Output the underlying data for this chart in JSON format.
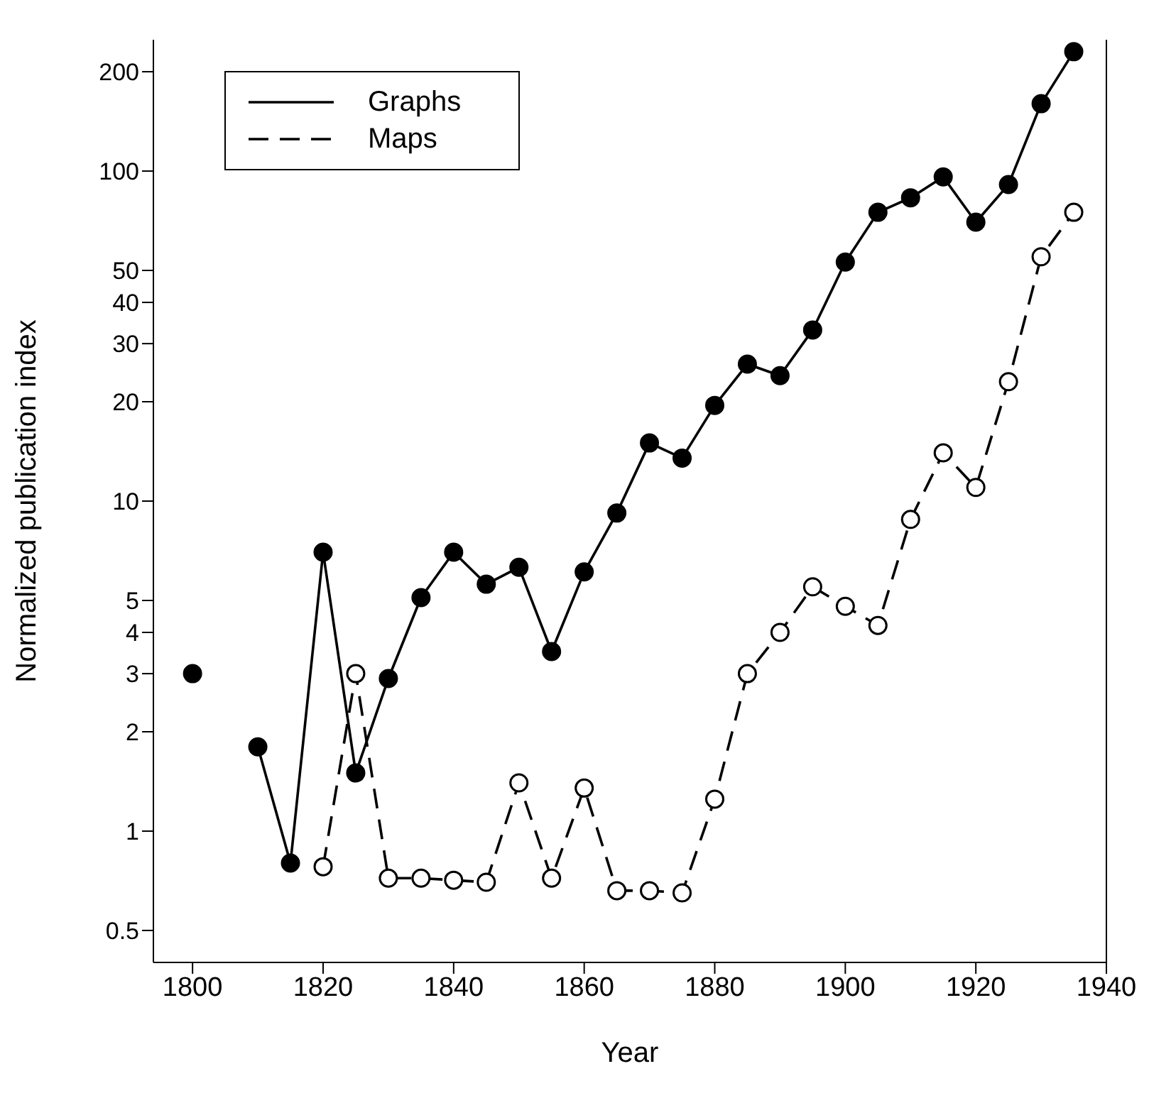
{
  "chart_data": {
    "type": "line",
    "xlabel": "Year",
    "ylabel": "Normalized publication index",
    "x": [
      1800,
      1805,
      1810,
      1815,
      1820,
      1825,
      1830,
      1835,
      1840,
      1845,
      1850,
      1855,
      1860,
      1865,
      1870,
      1875,
      1880,
      1885,
      1890,
      1895,
      1900,
      1905,
      1910,
      1915,
      1920,
      1925,
      1930,
      1935
    ],
    "series": [
      {
        "name": "Graphs",
        "color": "#000000",
        "line_style": "solid",
        "values": [
          3,
          null,
          1.8,
          0.8,
          7,
          1.5,
          2.9,
          5.1,
          7,
          5.6,
          6.3,
          3.5,
          6.1,
          9.2,
          15,
          13.5,
          19.5,
          26,
          24,
          33,
          53,
          75,
          83,
          96,
          70,
          91,
          160,
          230
        ]
      },
      {
        "name": "Maps",
        "color": "#000000",
        "line_style": "dashed",
        "values": [
          null,
          null,
          null,
          null,
          0.78,
          3,
          0.72,
          0.72,
          0.71,
          0.7,
          1.4,
          0.72,
          1.35,
          0.66,
          0.66,
          0.65,
          1.25,
          3,
          4,
          5.5,
          4.8,
          4.2,
          8.8,
          14,
          11,
          23,
          55,
          75
        ]
      }
    ],
    "log": "y",
    "xlim": [
      1794,
      1940
    ],
    "xticks": [
      1800,
      1820,
      1840,
      1860,
      1880,
      1900,
      1920,
      1940
    ],
    "ylim": [
      0.4,
      250
    ],
    "yticks": [
      0.5,
      1,
      2,
      3,
      4,
      5,
      10,
      20,
      30,
      40,
      50,
      100,
      200
    ],
    "marker": "circle",
    "legend": "top left",
    "grid": false
  }
}
